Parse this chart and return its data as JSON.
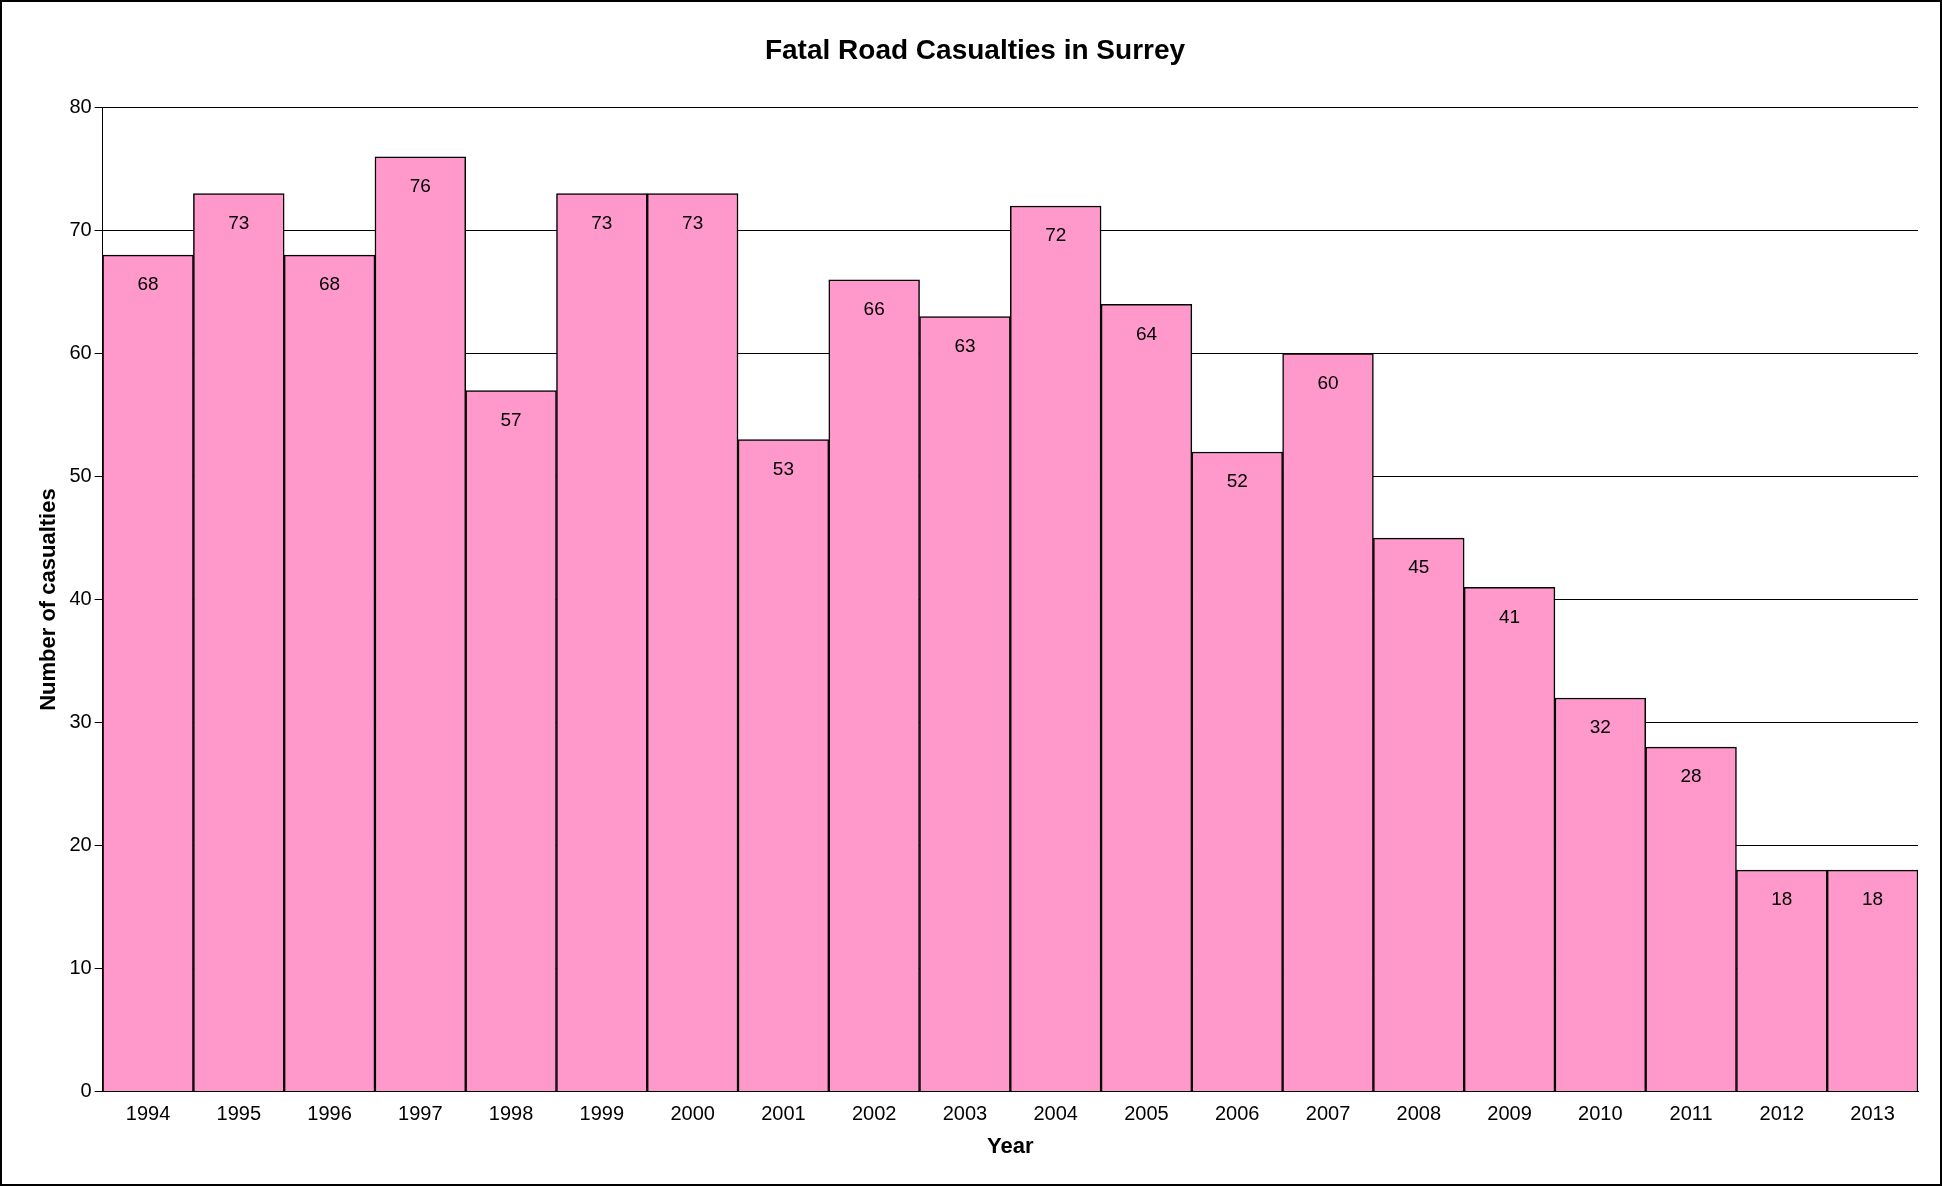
{
  "chart_data": {
    "type": "bar",
    "title": "Fatal Road Casualties in Surrey",
    "xlabel": "Year",
    "ylabel": "Number of casualties",
    "categories": [
      "1994",
      "1995",
      "1996",
      "1997",
      "1998",
      "1999",
      "2000",
      "2001",
      "2002",
      "2003",
      "2004",
      "2005",
      "2006",
      "2007",
      "2008",
      "2009",
      "2010",
      "2011",
      "2012",
      "2013"
    ],
    "values": [
      68,
      73,
      68,
      76,
      57,
      73,
      73,
      53,
      66,
      63,
      72,
      64,
      52,
      60,
      45,
      41,
      32,
      28,
      18,
      18
    ],
    "color": "#ff99cc",
    "ylim": [
      0,
      80
    ],
    "yticks": [
      0,
      10,
      20,
      30,
      40,
      50,
      60,
      70,
      80
    ],
    "grid": "y",
    "data_labels": true,
    "legend": false
  }
}
